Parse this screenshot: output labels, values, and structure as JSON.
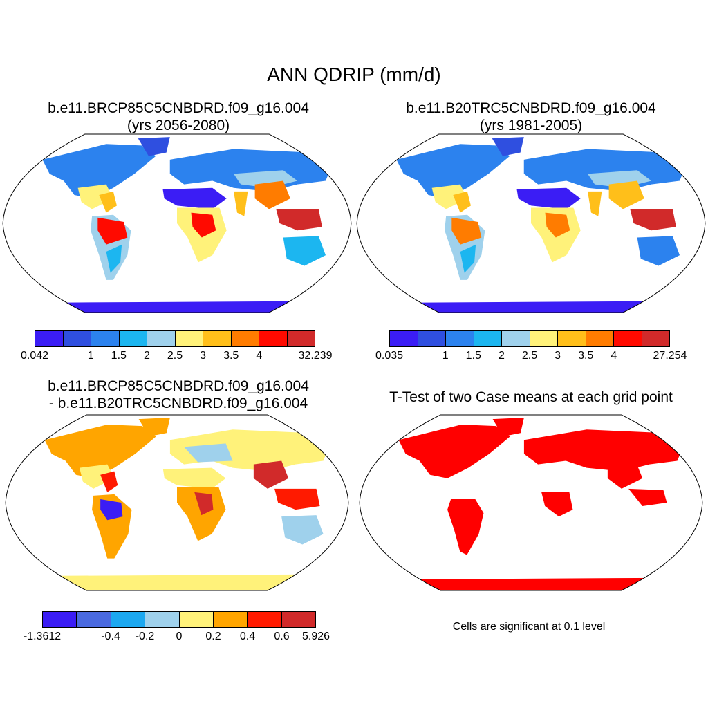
{
  "title": "ANN QDRIP (mm/d)",
  "panels": {
    "top_left": {
      "title_line1": "b.e11.BRCP85C5CNBDRD.f09_g16.004",
      "title_line2": "(yrs 2056-2080)",
      "colorbar": {
        "colors": [
          "#3b1df5",
          "#2f4fe0",
          "#2c82ee",
          "#1cb6f0",
          "#9fd1ec",
          "#fff27a",
          "#ffbf1a",
          "#ff7c00",
          "#ff0a00",
          "#d12a2a"
        ],
        "labels": [
          "0.042",
          "1",
          "1.5",
          "2",
          "2.5",
          "3",
          "3.5",
          "4",
          "32.239"
        ]
      }
    },
    "top_right": {
      "title_line1": "b.e11.B20TRC5CNBDRD.f09_g16.004",
      "title_line2": "(yrs 1981-2005)",
      "colorbar": {
        "colors": [
          "#3b1df5",
          "#2f4fe0",
          "#2c82ee",
          "#1cb6f0",
          "#9fd1ec",
          "#fff27a",
          "#ffbf1a",
          "#ff7c00",
          "#ff0a00",
          "#d12a2a"
        ],
        "labels": [
          "0.035",
          "1",
          "1.5",
          "2",
          "2.5",
          "3",
          "3.5",
          "4",
          "27.254"
        ]
      }
    },
    "bottom_left": {
      "title_line1": "b.e11.BRCP85C5CNBDRD.f09_g16.004",
      "title_line2": "- b.e11.B20TRC5CNBDRD.f09_g16.004",
      "colorbar": {
        "colors": [
          "#3b1df5",
          "#4a6ae0",
          "#1ca8f0",
          "#9fd1ec",
          "#fff27a",
          "#ffa500",
          "#ff1a00",
          "#d12a2a"
        ],
        "labels": [
          "-1.3612",
          "-0.4",
          "-0.2",
          "0",
          "0.2",
          "0.4",
          "0.6",
          "5.926"
        ]
      }
    },
    "bottom_right": {
      "title_line1": "T-Test of two Case means at each grid point",
      "note": "Cells are significant at 0.1 level"
    }
  }
}
